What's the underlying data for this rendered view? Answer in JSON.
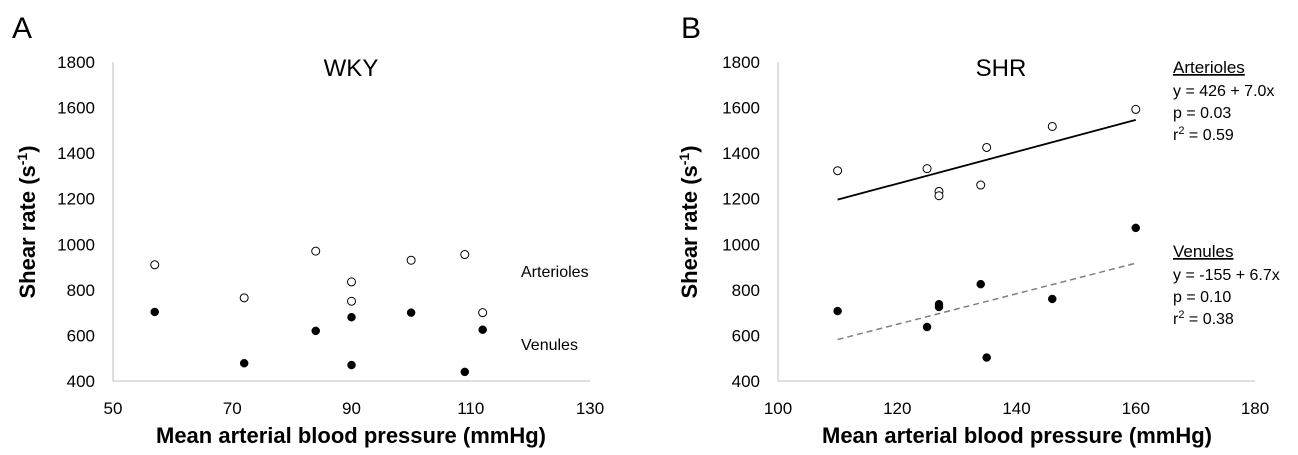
{
  "chart_data": [
    {
      "type": "scatter",
      "panel_label": "A",
      "title": "WKY",
      "xlabel": "Mean arterial blood pressure (mmHg)",
      "ylabel": "Shear rate (s-1)",
      "ylabel_base": "Shear rate (s",
      "ylabel_sup": "-1",
      "ylabel_close": ")",
      "xlim": [
        50,
        130
      ],
      "ylim": [
        400,
        1800
      ],
      "xticks": [
        50,
        70,
        90,
        110,
        130
      ],
      "yticks": [
        400,
        600,
        800,
        1000,
        1200,
        1400,
        1600,
        1800
      ],
      "series": [
        {
          "name": "Arterioles",
          "marker": "open-circle",
          "x": [
            57,
            72,
            84,
            90,
            90,
            100,
            109,
            112
          ],
          "y": [
            910,
            765,
            970,
            835,
            750,
            930,
            955,
            700
          ]
        },
        {
          "name": "Venules",
          "marker": "filled-circle",
          "x": [
            57,
            72,
            84,
            90,
            90,
            100,
            109,
            112
          ],
          "y": [
            703,
            478,
            620,
            680,
            470,
            700,
            440,
            625
          ]
        }
      ],
      "labels": {
        "arterioles": "Arterioles",
        "venules": "Venules"
      }
    },
    {
      "type": "scatter",
      "panel_label": "B",
      "title": "SHR",
      "xlabel": "Mean arterial blood pressure (mmHg)",
      "ylabel": "Shear rate (s-1)",
      "ylabel_base": "Shear rate (s",
      "ylabel_sup": "-1",
      "ylabel_close": ")",
      "xlim": [
        100,
        180
      ],
      "ylim": [
        400,
        1800
      ],
      "xticks": [
        100,
        120,
        140,
        160,
        180
      ],
      "yticks": [
        400,
        600,
        800,
        1000,
        1200,
        1400,
        1600,
        1800
      ],
      "series": [
        {
          "name": "Arterioles",
          "marker": "open-circle",
          "x": [
            110,
            125,
            127,
            127,
            134,
            135,
            146,
            160
          ],
          "y": [
            1323,
            1332,
            1232,
            1213,
            1260,
            1425,
            1517,
            1592
          ],
          "fit": {
            "type": "solid",
            "x": [
              110,
              160
            ],
            "y": [
              1196,
              1546
            ]
          }
        },
        {
          "name": "Venules",
          "marker": "filled-circle",
          "x": [
            110,
            125,
            127,
            127,
            134,
            135,
            146,
            160
          ],
          "y": [
            707,
            637,
            737,
            725,
            825,
            503,
            760,
            1072
          ],
          "fit": {
            "type": "dashed",
            "x": [
              110,
              160
            ],
            "y": [
              582,
              917
            ]
          }
        }
      ],
      "annotations": {
        "arterioles": {
          "head": "Arterioles",
          "eq": "y = 426 + 7.0x",
          "p": "p = 0.03",
          "r_base": "r",
          "r_sup": "2",
          "r_val": " = 0.59"
        },
        "venules": {
          "head": "Venules",
          "eq": "y = -155 + 6.7x",
          "p": "p = 0.10",
          "r_base": "r",
          "r_sup": "2",
          "r_val": " = 0.38"
        }
      }
    }
  ]
}
